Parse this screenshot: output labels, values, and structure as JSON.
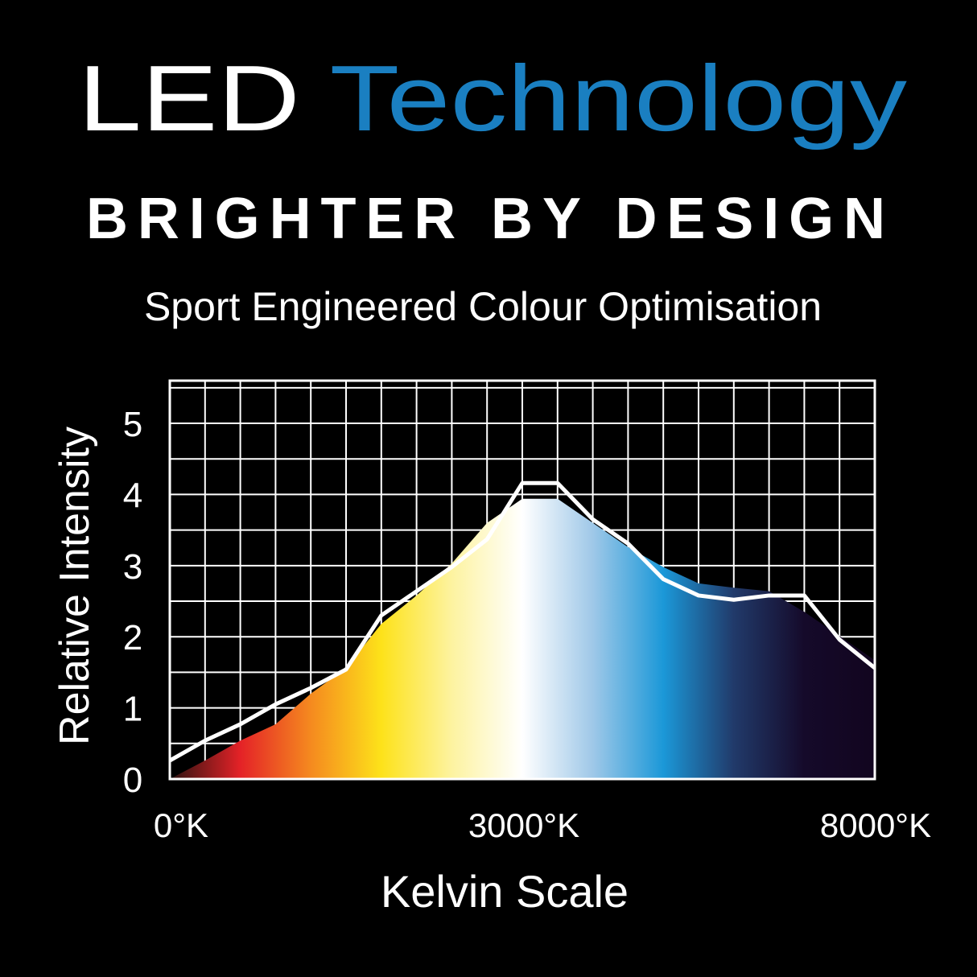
{
  "header": {
    "title_1": "LED",
    "title_2": "Technology",
    "tagline": "BRIGHTER BY DESIGN",
    "subtitle": "Sport Engineered Colour Optimisation"
  },
  "chart_data": {
    "type": "area",
    "x_label": "Kelvin Scale",
    "y_label": "Relative Intensity",
    "categories": [
      "0°K",
      null,
      null,
      null,
      null,
      null,
      null,
      null,
      null,
      null,
      "3000°K",
      null,
      null,
      null,
      null,
      null,
      null,
      null,
      null,
      null,
      "8000°K"
    ],
    "series": [
      {
        "colors": [
          "#2a1210",
          "#e42227",
          "#f58a1f",
          "#fde21a",
          "#fdf3a0",
          "#ffffff",
          "#9fc8e8",
          "#1b98d8",
          "#213a6a",
          "#150a2a",
          "#12051f"
        ],
        "values": [
          0,
          0.26,
          0.54,
          0.77,
          1.2,
          1.56,
          2.18,
          2.58,
          3.03,
          3.6,
          3.94,
          3.94,
          3.6,
          3.26,
          2.98,
          2.75,
          2.69,
          2.64,
          2.35,
          2.01,
          1.67
        ]
      },
      {
        "type": "line",
        "color": "#ffffff",
        "values": [
          0.26,
          0.54,
          0.77,
          1.05,
          1.28,
          1.54,
          2.3,
          2.64,
          2.98,
          3.37,
          4.16,
          4.16,
          3.65,
          3.31,
          2.81,
          2.58,
          2.52,
          2.58,
          2.58,
          1.96,
          1.56
        ]
      }
    ],
    "ylim": [
      0,
      5.6
    ],
    "yticks": [
      0,
      1,
      2,
      3,
      4,
      5
    ],
    "minor_yticks": [
      0.5,
      1.5,
      2.5,
      3.5,
      4.5,
      5.5
    ],
    "grid": true
  }
}
